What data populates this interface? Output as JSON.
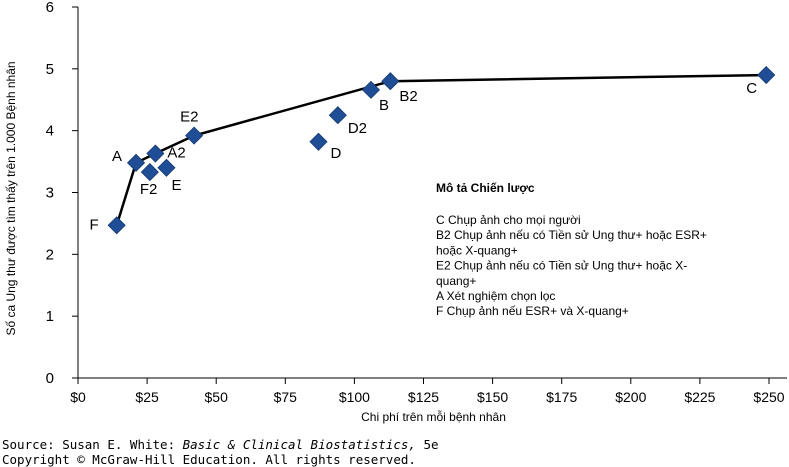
{
  "chart_data": {
    "type": "scatter",
    "xlabel": "Chi phí trên mỗi bệnh nhân",
    "ylabel": "Số ca Ung thư được tìm thấy trên 1.000 Bệnh nhân",
    "xlim": [
      0,
      250
    ],
    "ylim": [
      0,
      6
    ],
    "x_ticks": [
      0,
      25,
      50,
      75,
      100,
      125,
      150,
      175,
      200,
      225,
      250
    ],
    "x_tick_labels": [
      "$0",
      "$25",
      "$50",
      "$75",
      "$100",
      "$125",
      "$150",
      "$175",
      "$200",
      "$225",
      "$250"
    ],
    "y_ticks": [
      0,
      1,
      2,
      3,
      4,
      5,
      6
    ],
    "y_tick_labels": [
      "0",
      "1",
      "2",
      "3",
      "4",
      "5",
      "6"
    ],
    "grid": false,
    "points": [
      {
        "label": "F",
        "x": 14,
        "y": 2.47
      },
      {
        "label": "A",
        "x": 21,
        "y": 3.48
      },
      {
        "label": "F2",
        "x": 26,
        "y": 3.33
      },
      {
        "label": "A2",
        "x": 28,
        "y": 3.63
      },
      {
        "label": "E",
        "x": 32,
        "y": 3.4
      },
      {
        "label": "E2",
        "x": 42,
        "y": 3.92
      },
      {
        "label": "D",
        "x": 87,
        "y": 3.82
      },
      {
        "label": "D2",
        "x": 94,
        "y": 4.25
      },
      {
        "label": "B",
        "x": 106,
        "y": 4.66
      },
      {
        "label": "B2",
        "x": 113,
        "y": 4.8
      },
      {
        "label": "C",
        "x": 249,
        "y": 4.9
      }
    ],
    "frontier": [
      "F",
      "A",
      "A2",
      "E2",
      "B2",
      "C"
    ],
    "legend_box": {
      "title": "Mô tả Chiến lược",
      "lines": [
        "C Chụp ảnh cho mọi người",
        "B2 Chụp ảnh nếu có Tiền sử Ung thư+ hoặc ESR+",
        "hoặc X-quang+",
        "E2 Chụp ảnh nếu có Tiền sử Ung thư+ hoặc X-",
        "quang+",
        "A Xét nghiệm chọn lọc",
        "F Chụp ảnh nếu ESR+ và X-quang+"
      ]
    },
    "marker_color": "#1f4e96"
  },
  "source": {
    "prefix": "Source: Susan E. White: ",
    "title": "Basic & Clinical Biostatistics,",
    "edition": " 5e",
    "copyright": "Copyright © McGraw-Hill Education. All rights reserved."
  }
}
